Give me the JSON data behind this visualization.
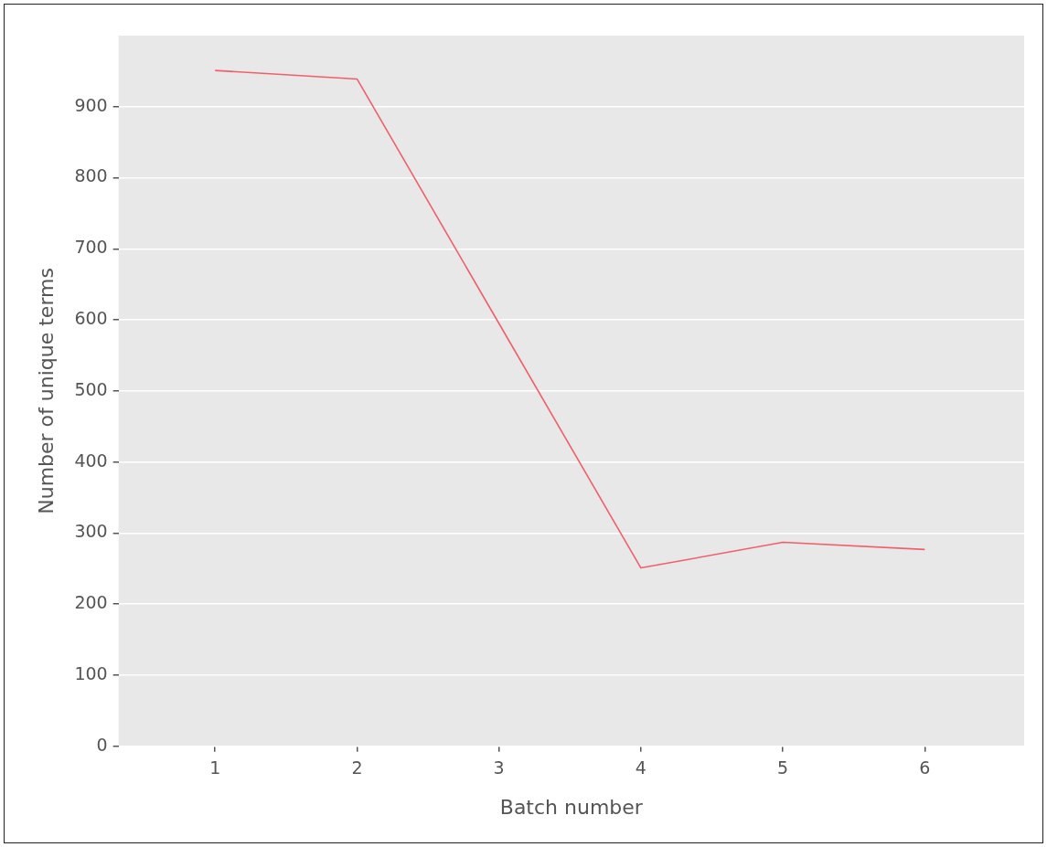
{
  "chart_data": {
    "type": "line",
    "xlabel": "Batch number",
    "ylabel": "Number of unique terms",
    "x": [
      1,
      2,
      3,
      4,
      5,
      6
    ],
    "series": [
      {
        "color": "#f0606a",
        "values": [
          951,
          939,
          595,
          251,
          287,
          277
        ]
      }
    ],
    "xlim": [
      0.32,
      6.7
    ],
    "xticks": [
      1,
      2,
      3,
      4,
      5,
      6
    ],
    "ylim": [
      0,
      1000
    ],
    "yticks": [
      0,
      100,
      200,
      300,
      400,
      500,
      600,
      700,
      800,
      900
    ],
    "grid": "y",
    "marker": "none",
    "line_style": "solid",
    "legend": false
  }
}
